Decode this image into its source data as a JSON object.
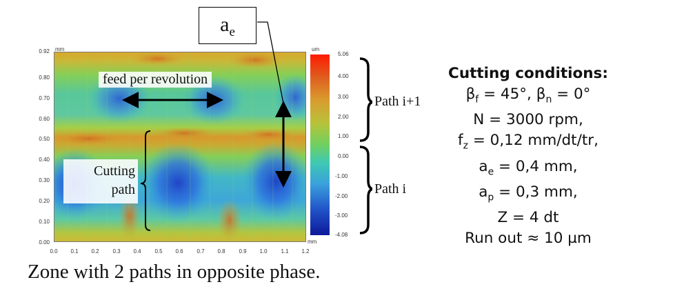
{
  "map": {
    "unit_left": "mm",
    "unit_right": "mm",
    "colorbar_unit": "um",
    "y_ticks": [
      "0.92",
      "0.80",
      "0.70",
      "0.60",
      "0.50",
      "0.40",
      "0.30",
      "0.20",
      "0.10",
      "0.00"
    ],
    "x_ticks": [
      "0.0",
      "0.1",
      "0.2",
      "0.3",
      "0.4",
      "0.5",
      "0.6",
      "0.7",
      "0.8",
      "0.9",
      "1.0",
      "1.1",
      "1.2"
    ],
    "colorbar_ticks": [
      "5.06",
      "4.00",
      "3.00",
      "2.00",
      "1.00",
      "0.00",
      "-1.00",
      "-2.00",
      "-3.00",
      "-4.08"
    ]
  },
  "labels": {
    "ae_box": "a",
    "ae_sub": "e",
    "feed": "feed per revolution",
    "cutting_path_line1": "Cutting",
    "cutting_path_line2": "path",
    "path_upper": "Path i+1",
    "path_lower": "Path i"
  },
  "caption": "Zone with 2 paths in opposite phase.",
  "conditions": {
    "title": "Cutting conditions:",
    "beta_f": "β",
    "beta_f_sub": "f",
    "beta_f_val": " = 45°, ",
    "beta_n": "β",
    "beta_n_sub": "n",
    "beta_n_val": " = 0°",
    "speed": "N = 3000 rpm,",
    "fz_pre": "f",
    "fz_sub": "z",
    "fz_val": " = 0,12 mm/dt/tr,",
    "ae_pre": "a",
    "ae_sub": "e",
    "ae_val": " = 0,4 mm,",
    "ap_pre": "a",
    "ap_sub": "p",
    "ap_val": " = 0,3 mm,",
    "teeth": "Z = 4 dt",
    "runout": "Run out ≈ 10 µm"
  },
  "colors": {
    "arrow": "#000000",
    "brace": "#000000"
  }
}
